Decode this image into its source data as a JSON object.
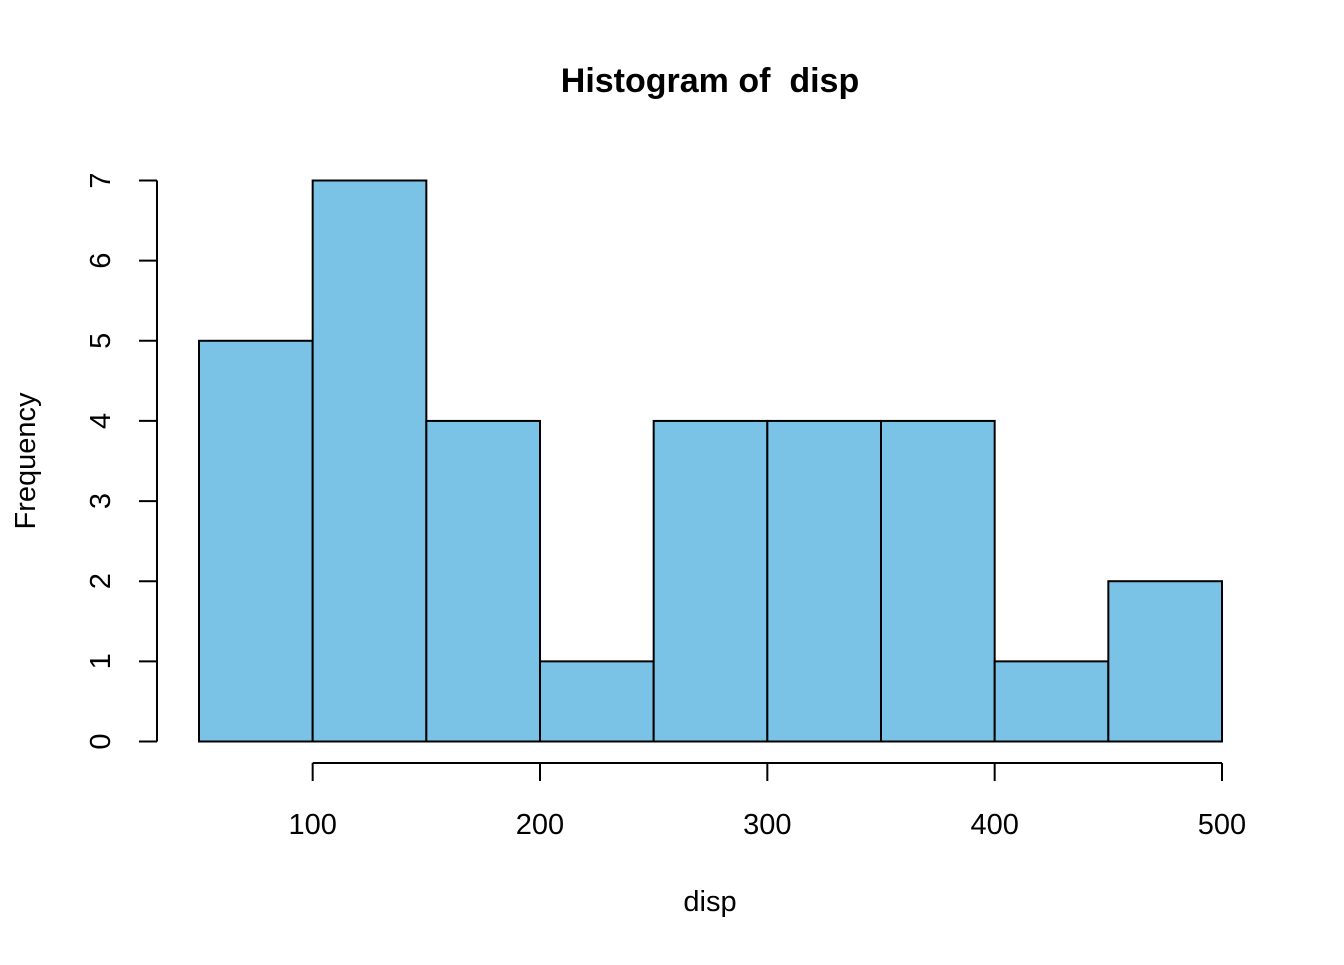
{
  "chart_data": {
    "type": "bar",
    "title": "Histogram of  disp",
    "xlabel": "disp",
    "ylabel": "Frequency",
    "bins": [
      {
        "start": 50,
        "end": 100,
        "count": 5
      },
      {
        "start": 100,
        "end": 150,
        "count": 7
      },
      {
        "start": 150,
        "end": 200,
        "count": 4
      },
      {
        "start": 200,
        "end": 250,
        "count": 1
      },
      {
        "start": 250,
        "end": 300,
        "count": 4
      },
      {
        "start": 300,
        "end": 350,
        "count": 4
      },
      {
        "start": 350,
        "end": 400,
        "count": 4
      },
      {
        "start": 400,
        "end": 450,
        "count": 1
      },
      {
        "start": 450,
        "end": 500,
        "count": 2
      }
    ],
    "xticks": [
      100,
      200,
      300,
      400,
      500
    ],
    "yticks": [
      0,
      1,
      2,
      3,
      4,
      5,
      6,
      7
    ],
    "xlim": [
      50,
      500
    ],
    "ylim": [
      0,
      7
    ],
    "bar_fill": "#7AC3E6",
    "bar_stroke": "#000000",
    "grid": false,
    "legend": "none"
  }
}
